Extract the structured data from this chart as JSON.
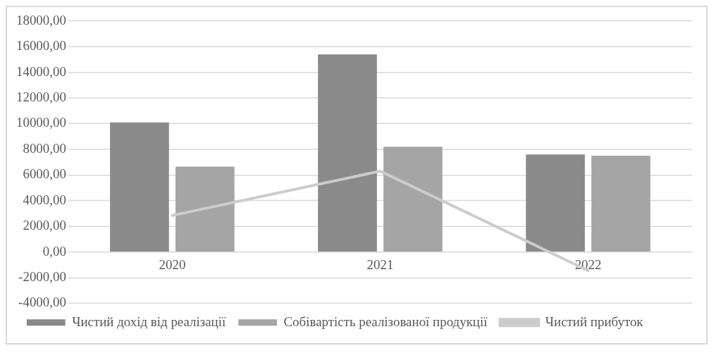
{
  "chart_data": {
    "type": "bar",
    "categories": [
      "2020",
      "2021",
      "2022"
    ],
    "series": [
      {
        "name": "Чистий дохід від реалізації",
        "color": "#8a8a8a",
        "values": [
          10100,
          15400,
          7600
        ]
      },
      {
        "name": "Собівартість реалізованої продукції",
        "color": "#a5a5a5",
        "values": [
          6650,
          8200,
          7500
        ]
      },
      {
        "name": "Чистий прибуток",
        "type": "line",
        "color": "#cccccc",
        "values": [
          2850,
          6300,
          -1450
        ]
      }
    ],
    "ylim": [
      -4000,
      18000
    ],
    "yticks": [
      {
        "value": -4000,
        "label": "-4000,00"
      },
      {
        "value": -2000,
        "label": "-2000,00"
      },
      {
        "value": 0,
        "label": "0,00"
      },
      {
        "value": 2000,
        "label": "2000,00"
      },
      {
        "value": 4000,
        "label": "4000,00"
      },
      {
        "value": 6000,
        "label": "6000,00"
      },
      {
        "value": 8000,
        "label": "8000,00"
      },
      {
        "value": 10000,
        "label": "10000,00"
      },
      {
        "value": 12000,
        "label": "12000,00"
      },
      {
        "value": 14000,
        "label": "14000,00"
      },
      {
        "value": 16000,
        "label": "16000,00"
      },
      {
        "value": 18000,
        "label": "18000,00"
      }
    ],
    "grid": "y",
    "legend": "bottom",
    "marker": "none"
  }
}
